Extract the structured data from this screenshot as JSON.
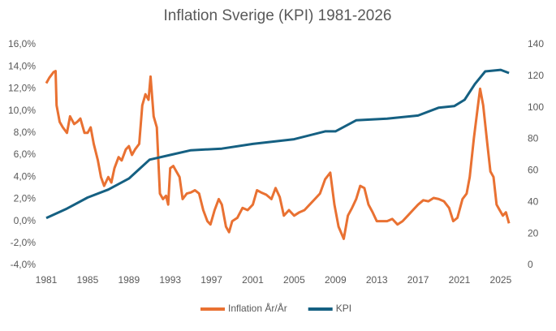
{
  "chart_data": {
    "type": "line",
    "title": "Inflation Sverige  (KPI) 1981-2026",
    "xlim": [
      1981,
      2026.5
    ],
    "xticks": [
      1981,
      1985,
      1989,
      1993,
      1997,
      2001,
      2005,
      2009,
      2013,
      2017,
      2021,
      2025
    ],
    "ylim": [
      -4,
      16
    ],
    "yticks": [
      {
        "value": -4,
        "label": "-4,0%"
      },
      {
        "value": -2,
        "label": "-2,0%"
      },
      {
        "value": 0,
        "label": "0,0%"
      },
      {
        "value": 2,
        "label": "2,0%"
      },
      {
        "value": 4,
        "label": "4,0%"
      },
      {
        "value": 6,
        "label": "6,0%"
      },
      {
        "value": 8,
        "label": "8,0%"
      },
      {
        "value": 10,
        "label": "10,0%"
      },
      {
        "value": 12,
        "label": "12,0%"
      },
      {
        "value": 14,
        "label": "14,0%"
      },
      {
        "value": 16,
        "label": "16,0%"
      }
    ],
    "y2lim": [
      0,
      140
    ],
    "y2ticks": [
      0,
      20,
      40,
      60,
      80,
      100,
      120,
      140
    ],
    "legend": "bottom",
    "series": [
      {
        "name": "Inflation År/År",
        "color": "#e97132",
        "x": [
          1981.0,
          1981.3,
          1981.7,
          1981.9,
          1982.0,
          1982.3,
          1982.6,
          1983.0,
          1983.3,
          1983.7,
          1984.0,
          1984.3,
          1984.7,
          1985.0,
          1985.3,
          1985.6,
          1986.0,
          1986.3,
          1986.6,
          1987.0,
          1987.3,
          1987.6,
          1988.0,
          1988.3,
          1988.7,
          1989.0,
          1989.3,
          1989.6,
          1990.0,
          1990.3,
          1990.6,
          1990.9,
          1991.1,
          1991.4,
          1991.7,
          1992.0,
          1992.3,
          1992.6,
          1992.8,
          1993.0,
          1993.3,
          1993.6,
          1993.9,
          1994.2,
          1994.6,
          1995.0,
          1995.4,
          1995.8,
          1996.2,
          1996.6,
          1996.9,
          1997.3,
          1997.7,
          1998.0,
          1998.4,
          1998.7,
          1999.0,
          1999.5,
          2000.0,
          2000.5,
          2001.0,
          2001.4,
          2001.8,
          2002.3,
          2002.8,
          2003.2,
          2003.6,
          2004.0,
          2004.5,
          2005.0,
          2005.5,
          2006.0,
          2006.5,
          2007.0,
          2007.5,
          2008.0,
          2008.5,
          2008.9,
          2009.3,
          2009.8,
          2010.2,
          2010.6,
          2011.0,
          2011.4,
          2011.8,
          2012.2,
          2012.6,
          2013.0,
          2013.5,
          2014.0,
          2014.5,
          2015.0,
          2015.5,
          2016.0,
          2016.5,
          2017.0,
          2017.5,
          2018.0,
          2018.5,
          2019.0,
          2019.5,
          2020.0,
          2020.4,
          2020.8,
          2021.3,
          2021.7,
          2022.0,
          2022.4,
          2022.8,
          2023.0,
          2023.3,
          2023.7,
          2024.0,
          2024.3,
          2024.6,
          2024.9,
          2025.2,
          2025.5,
          2025.8
        ],
        "values": [
          12.5,
          13.0,
          13.5,
          13.6,
          10.5,
          9.0,
          8.5,
          8.0,
          9.5,
          8.8,
          9.0,
          9.3,
          8.0,
          8.0,
          8.5,
          7.0,
          5.5,
          4.0,
          3.2,
          4.0,
          3.5,
          4.8,
          5.8,
          5.5,
          6.5,
          6.8,
          6.0,
          6.5,
          7.0,
          10.5,
          11.5,
          11.0,
          13.1,
          9.5,
          8.5,
          2.5,
          2.0,
          2.3,
          1.5,
          4.8,
          5.0,
          4.5,
          4.0,
          2.0,
          2.5,
          2.6,
          2.8,
          2.5,
          1.0,
          0.0,
          -0.3,
          1.0,
          2.0,
          1.5,
          -0.5,
          -1.0,
          0.0,
          0.3,
          1.2,
          1.0,
          1.5,
          2.8,
          2.6,
          2.4,
          2.0,
          3.0,
          2.2,
          0.5,
          1.0,
          0.5,
          0.8,
          1.0,
          1.5,
          2.0,
          2.5,
          3.8,
          4.4,
          1.5,
          -0.5,
          -1.6,
          0.5,
          1.2,
          2.0,
          3.2,
          3.0,
          1.5,
          0.8,
          0.0,
          0.0,
          0.0,
          0.2,
          -0.3,
          0.0,
          0.5,
          1.0,
          1.5,
          1.9,
          1.8,
          2.1,
          2.0,
          1.8,
          1.2,
          0.0,
          0.3,
          2.0,
          2.5,
          4.0,
          7.5,
          10.5,
          12.0,
          10.5,
          7.0,
          4.5,
          4.0,
          1.5,
          1.0,
          0.5,
          0.8,
          -0.2
        ]
      },
      {
        "name": "KPI",
        "color": "#156082",
        "axis": "y2",
        "x": [
          1981,
          1983,
          1985,
          1987,
          1989,
          1990,
          1991,
          1993,
          1995,
          1998,
          2001,
          2005,
          2008,
          2009,
          2011,
          2014,
          2017,
          2019,
          2020.5,
          2021.5,
          2022.5,
          2023.5,
          2025,
          2025.8
        ],
        "values": [
          30,
          36,
          43,
          48,
          55,
          61,
          67,
          70,
          73,
          74,
          77,
          80,
          85,
          85,
          92,
          93,
          95,
          100,
          101,
          105,
          115,
          123,
          124,
          122
        ]
      }
    ]
  }
}
